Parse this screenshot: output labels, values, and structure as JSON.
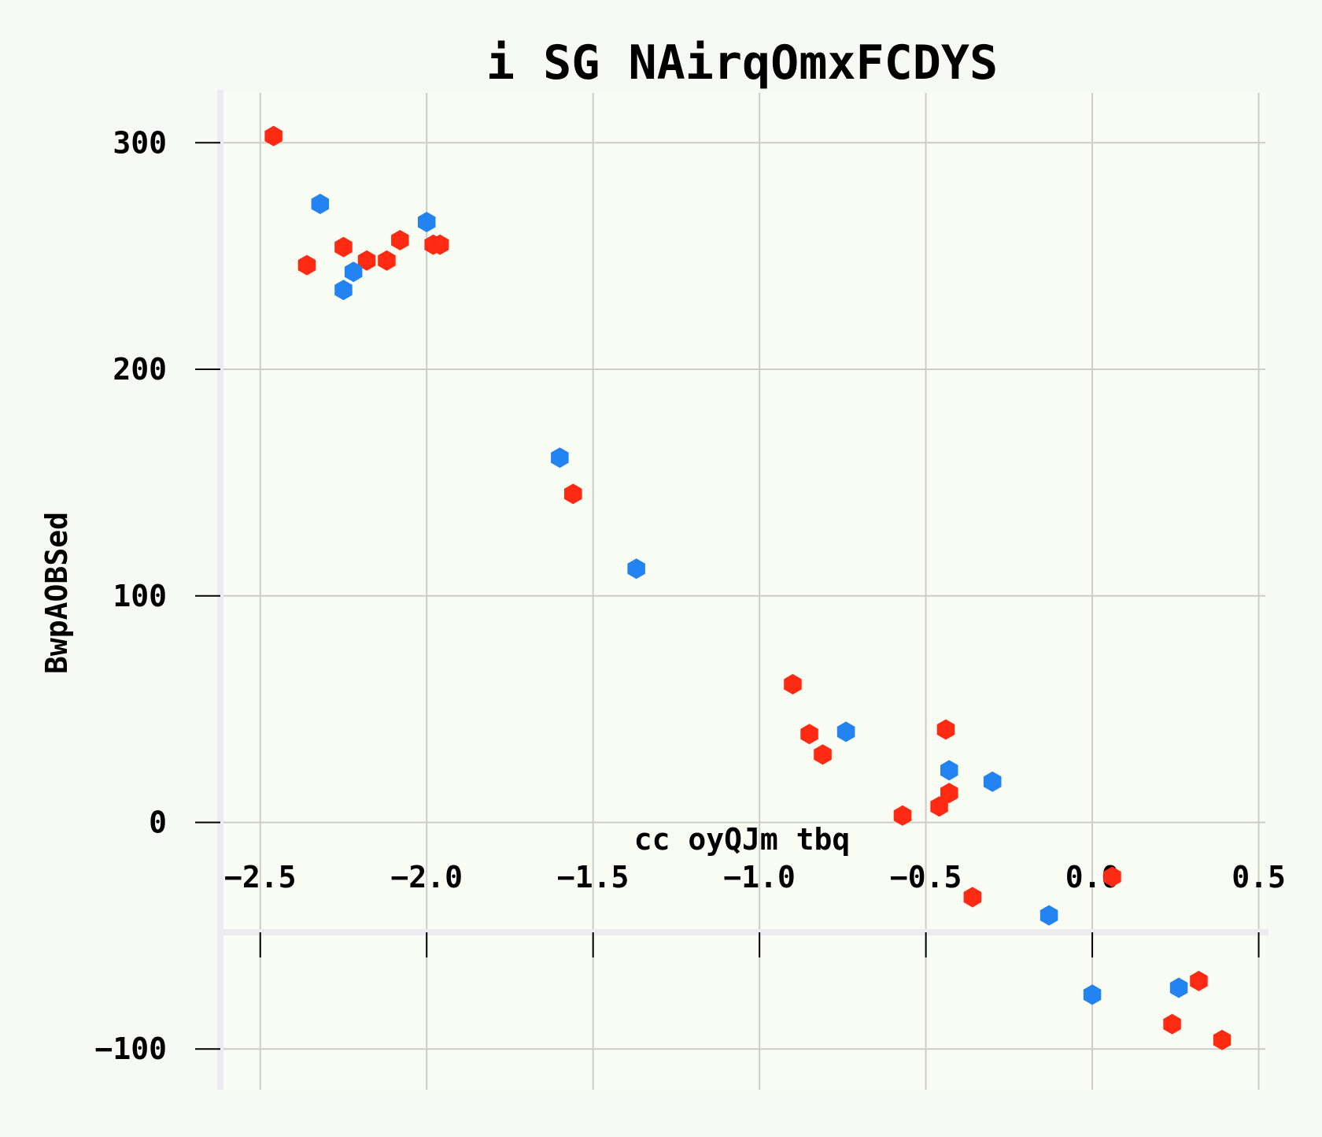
{
  "chart_data": {
    "type": "scatter",
    "title": "i SG NAirqOmxFCDYS",
    "xlabel": "cc oyQJm tbq",
    "ylabel": "BwpAOBSed",
    "xlim": [
      -2.62,
      0.52
    ],
    "ylim": [
      -118,
      322
    ],
    "xticks": [
      -2.5,
      -2.0,
      -1.5,
      -1.0,
      -0.5,
      0.0,
      0.5
    ],
    "xtick_labels": [
      "−2.5",
      "−2.0",
      "−1.5",
      "−1.0",
      "−0.5",
      "0.0",
      "0.5"
    ],
    "yticks": [
      -100,
      0,
      100,
      200,
      300
    ],
    "ytick_labels": [
      "−100",
      "0",
      "100",
      "200",
      "300"
    ],
    "grid": true,
    "marker": "hexagon",
    "series": [
      {
        "color": "#ff2a12",
        "points": [
          [
            -2.46,
            303
          ],
          [
            -2.36,
            246
          ],
          [
            -2.25,
            254
          ],
          [
            -2.18,
            248
          ],
          [
            -2.12,
            248
          ],
          [
            -2.08,
            257
          ],
          [
            -1.98,
            255
          ],
          [
            -1.96,
            255
          ],
          [
            -1.56,
            145
          ],
          [
            -0.9,
            61
          ],
          [
            -0.85,
            39
          ],
          [
            -0.81,
            30
          ],
          [
            -0.57,
            3
          ],
          [
            -0.46,
            7
          ],
          [
            -0.44,
            41
          ],
          [
            -0.43,
            13
          ],
          [
            -0.36,
            -33
          ],
          [
            0.06,
            -24
          ],
          [
            0.24,
            -89
          ],
          [
            0.32,
            -70
          ],
          [
            0.39,
            -96
          ]
        ]
      },
      {
        "color": "#2383f0",
        "points": [
          [
            -2.32,
            273
          ],
          [
            -2.25,
            235
          ],
          [
            -2.22,
            243
          ],
          [
            -2.0,
            265
          ],
          [
            -1.6,
            161
          ],
          [
            -1.37,
            112
          ],
          [
            -0.74,
            40
          ],
          [
            -0.43,
            23
          ],
          [
            -0.3,
            18
          ],
          [
            -0.13,
            -41
          ],
          [
            0.0,
            -76
          ],
          [
            0.26,
            -73
          ]
        ]
      }
    ]
  }
}
